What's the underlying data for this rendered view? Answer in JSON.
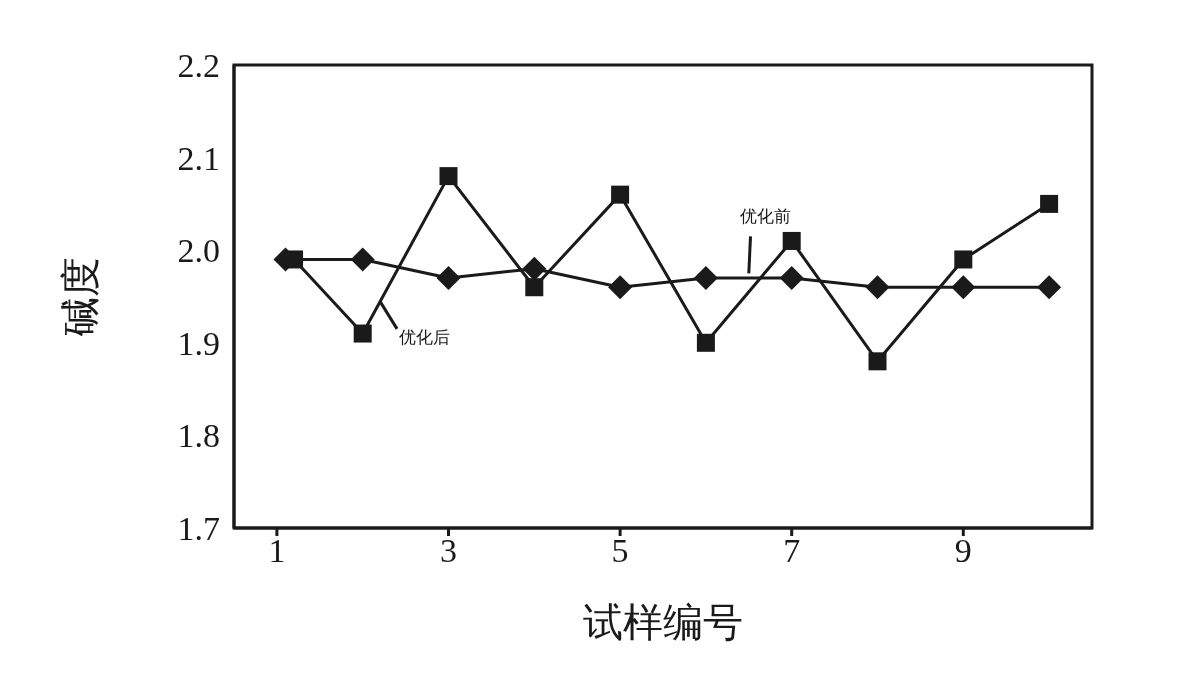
{
  "chart_data": {
    "type": "line",
    "xlabel": "试样编号",
    "ylabel": "碱度",
    "xlim": [
      0.5,
      10.5
    ],
    "xticks": [
      1,
      3,
      5,
      7,
      9
    ],
    "ylim": [
      1.7,
      2.2
    ],
    "yticks": [
      1.7,
      1.8,
      1.9,
      {
        "value": 2,
        "label": "2.0"
      },
      2.1,
      2.2
    ],
    "line_style": "solid",
    "series": [
      {
        "name": "优化后",
        "color": "#1a1a1a",
        "marker": "square",
        "x": [
          1.2,
          2,
          3,
          4,
          5,
          6,
          7,
          8,
          9,
          10
        ],
        "values": [
          1.99,
          1.91,
          2.08,
          1.96,
          2.06,
          1.9,
          2.01,
          1.88,
          1.99,
          2.05
        ]
      },
      {
        "name": "优化前",
        "color": "#1a1a1a",
        "marker": "diamond",
        "x": [
          1.1,
          2,
          3,
          4,
          5,
          6,
          7,
          8,
          9,
          10
        ],
        "values": [
          1.99,
          1.99,
          1.97,
          1.98,
          1.96,
          1.97,
          1.97,
          1.96,
          1.96,
          1.96
        ]
      }
    ]
  }
}
